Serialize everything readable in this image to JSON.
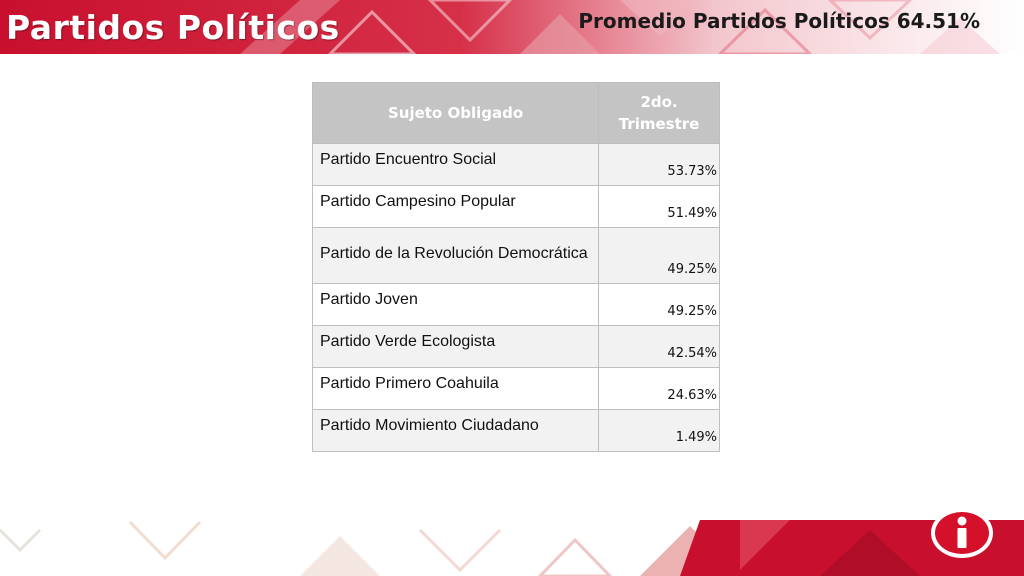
{
  "header": {
    "title": "Partidos Políticos",
    "average_label": "Promedio Partidos Políticos 64.51%"
  },
  "colors": {
    "banner_red": "#c8102e",
    "banner_dark": "#a00d24",
    "header_gray": "#c4c4c4",
    "row_alt": "#f2f2f2"
  },
  "table": {
    "headers": [
      "Sujeto Obligado",
      "2do. Trimestre"
    ],
    "rows": [
      {
        "name": "Partido Encuentro Social",
        "value": "53.73%"
      },
      {
        "name": "Partido Campesino Popular",
        "value": "51.49%"
      },
      {
        "name": "Partido de la Revolución Democrática",
        "value": "49.25%"
      },
      {
        "name": "Partido Joven",
        "value": "49.25%"
      },
      {
        "name": "Partido Verde Ecologista",
        "value": "42.54%"
      },
      {
        "name": "Partido Primero Coahuila",
        "value": "24.63%"
      },
      {
        "name": "Partido Movimiento Ciudadano",
        "value": "1.49%"
      }
    ]
  },
  "logo": {
    "icon": "info-logo-icon"
  }
}
